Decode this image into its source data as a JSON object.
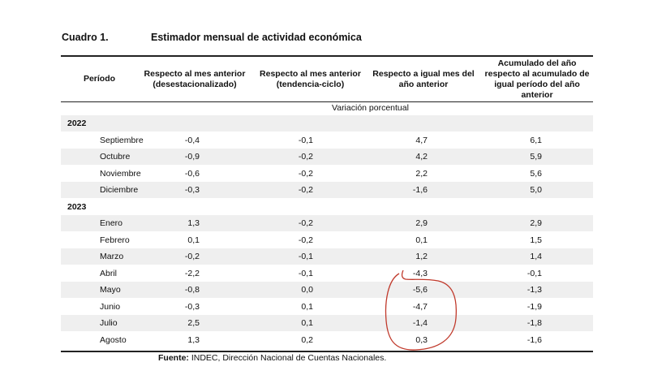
{
  "title": {
    "label": "Cuadro 1.",
    "text": "Estimador mensual de actividad económica"
  },
  "columns": [
    "Período",
    "Respecto al mes anterior (desestacionalizado)",
    "Respecto al mes anterior (tendencia-ciclo)",
    "Respecto a igual mes del año anterior",
    "Acumulado del año respecto al acumulado de igual período del año anterior"
  ],
  "subheader": "Variación porcentual",
  "rows": [
    {
      "type": "year",
      "label": "2022"
    },
    {
      "type": "data",
      "period": "Septiembre",
      "values": [
        "-0,4",
        "-0,1",
        "4,7",
        "6,1"
      ]
    },
    {
      "type": "data",
      "period": "Octubre",
      "values": [
        "-0,9",
        "-0,2",
        "4,2",
        "5,9"
      ]
    },
    {
      "type": "data",
      "period": "Noviembre",
      "values": [
        "-0,6",
        "-0,2",
        "2,2",
        "5,6"
      ]
    },
    {
      "type": "data",
      "period": "Diciembre",
      "values": [
        "-0,3",
        "-0,2",
        "-1,6",
        "5,0"
      ]
    },
    {
      "type": "year",
      "label": "2023"
    },
    {
      "type": "data",
      "period": "Enero",
      "values": [
        "1,3",
        "-0,2",
        "2,9",
        "2,9"
      ]
    },
    {
      "type": "data",
      "period": "Febrero",
      "values": [
        "0,1",
        "-0,2",
        "0,1",
        "1,5"
      ]
    },
    {
      "type": "data",
      "period": "Marzo",
      "values": [
        "-0,2",
        "-0,1",
        "1,2",
        "1,4"
      ]
    },
    {
      "type": "data",
      "period": "Abril",
      "values": [
        "-2,2",
        "-0,1",
        "-4,3",
        "-0,1"
      ]
    },
    {
      "type": "data",
      "period": "Mayo",
      "values": [
        "-0,8",
        "0,0",
        "-5,6",
        "-1,3"
      ]
    },
    {
      "type": "data",
      "period": "Junio",
      "values": [
        "-0,3",
        "0,1",
        "-4,7",
        "-1,9"
      ]
    },
    {
      "type": "data",
      "period": "Julio",
      "values": [
        "2,5",
        "0,1",
        "-1,4",
        "-1,8"
      ]
    },
    {
      "type": "data",
      "period": "Agosto",
      "values": [
        "1,3",
        "0,2",
        "0,3",
        "-1,6"
      ]
    }
  ],
  "source": {
    "label": "Fuente:",
    "text": "INDEC, Dirección Nacional de Cuentas Nacionales."
  },
  "annotation_color": "#c0392b"
}
